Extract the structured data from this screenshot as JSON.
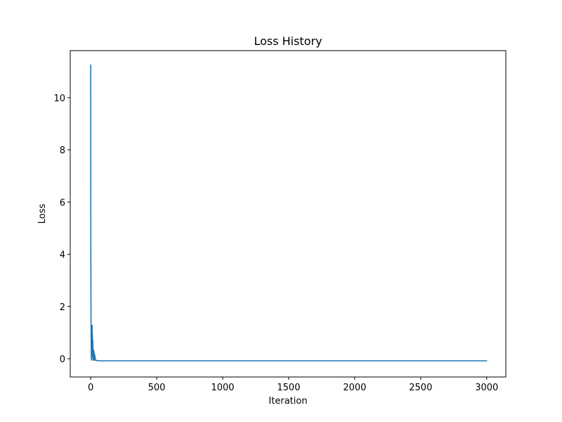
{
  "chart_data": {
    "type": "line",
    "title": "Loss History",
    "xlabel": "Iteration",
    "ylabel": "Loss",
    "xlim": [
      -155,
      3145
    ],
    "ylim": [
      -0.7,
      11.8
    ],
    "x_ticks": [
      0,
      500,
      1000,
      1500,
      2000,
      2500,
      3000
    ],
    "y_ticks": [
      0,
      2,
      4,
      6,
      8,
      10
    ],
    "x_tick_labels": [
      "0",
      "500",
      "1000",
      "1500",
      "2000",
      "2500",
      "3000"
    ],
    "y_tick_labels": [
      "0",
      "2",
      "4",
      "6",
      "8",
      "10"
    ],
    "grid": false,
    "legend": "none",
    "series": [
      {
        "color": "#1f77b4",
        "x": [
          0,
          1,
          2,
          3,
          4,
          5,
          6,
          7,
          8,
          9,
          10,
          11,
          12,
          13,
          14,
          15,
          16,
          17,
          18,
          19,
          20,
          22,
          24,
          26,
          28,
          30,
          32,
          35,
          40,
          45,
          50,
          60,
          80,
          100,
          150,
          200,
          300,
          500,
          750,
          1000,
          1250,
          1500,
          1750,
          2000,
          2250,
          2500,
          2750,
          3000
        ],
        "values": [
          11.25,
          4.2,
          2.1,
          0.9,
          0.3,
          -0.05,
          0.4,
          0.8,
          0.2,
          1.28,
          0.6,
          1.25,
          0.1,
          0.9,
          0.3,
          0.05,
          0.7,
          -0.02,
          0.4,
          0.2,
          -0.05,
          0.15,
          0.3,
          -0.06,
          0.18,
          0.05,
          0.12,
          -0.05,
          -0.06,
          -0.07,
          -0.07,
          -0.08,
          -0.08,
          -0.08,
          -0.08,
          -0.08,
          -0.08,
          -0.08,
          -0.08,
          -0.08,
          -0.08,
          -0.08,
          -0.08,
          -0.08,
          -0.08,
          -0.08,
          -0.08,
          -0.08
        ]
      }
    ]
  }
}
